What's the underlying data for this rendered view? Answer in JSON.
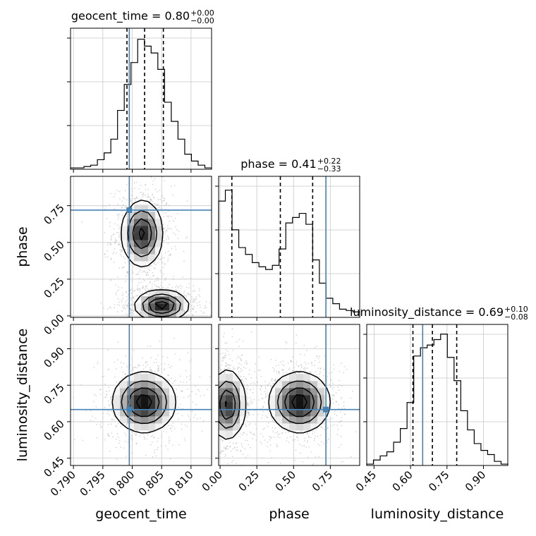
{
  "chart_data": {
    "type": "corner",
    "truth_color": "#4682b4",
    "parameters": [
      {
        "name": "geocent_time",
        "median": "0.80",
        "upper_err": "+0.00",
        "lower_err": "−0.00",
        "range": [
          0.7895,
          0.8135
        ],
        "ticks": [
          "0.790",
          "0.795",
          "0.800",
          "0.805",
          "0.810"
        ],
        "tick_values": [
          0.79,
          0.795,
          0.8,
          0.805,
          0.81
        ],
        "quantiles": [
          0.7991,
          0.8021,
          0.8053
        ],
        "truth": 0.7995,
        "title": "geocent_time = 0.80",
        "xlabel": "geocent_time"
      },
      {
        "name": "phase",
        "median": "0.41",
        "upper_err": "+0.22",
        "lower_err": "−0.33",
        "range": [
          -0.01,
          0.95
        ],
        "ticks": [
          "0.00",
          "0.25",
          "0.50",
          "0.75"
        ],
        "tick_values": [
          0.0,
          0.25,
          0.5,
          0.75
        ],
        "quantiles": [
          0.08,
          0.41,
          0.63
        ],
        "truth": 0.72,
        "title": "phase = 0.41",
        "xlabel": "phase",
        "ylabel": "phase"
      },
      {
        "name": "luminosity_distance",
        "median": "0.69",
        "upper_err": "+0.10",
        "lower_err": "−0.08",
        "range": [
          0.42,
          1.0
        ],
        "ticks": [
          "0.45",
          "0.60",
          "0.75",
          "0.90"
        ],
        "tick_values": [
          0.45,
          0.6,
          0.75,
          0.9
        ],
        "quantiles": [
          0.61,
          0.69,
          0.79
        ],
        "truth": 0.65,
        "title": "luminosity_distance = 0.69",
        "xlabel": "luminosity_distance",
        "ylabel": "luminosity_distance"
      }
    ],
    "histograms": {
      "geocent_time": [
        0.01,
        0.01,
        0.02,
        0.03,
        0.07,
        0.12,
        0.22,
        0.43,
        0.62,
        0.78,
        0.95,
        0.9,
        0.85,
        0.73,
        0.49,
        0.35,
        0.22,
        0.11,
        0.06,
        0.03,
        0.01
      ],
      "phase": [
        0.85,
        0.93,
        0.64,
        0.51,
        0.46,
        0.4,
        0.37,
        0.35,
        0.38,
        0.5,
        0.69,
        0.73,
        0.76,
        0.68,
        0.42,
        0.25,
        0.14,
        0.1,
        0.06,
        0.05,
        0.04
      ],
      "luminosity_distance": [
        0.01,
        0.04,
        0.07,
        0.1,
        0.17,
        0.27,
        0.46,
        0.8,
        0.86,
        0.88,
        0.92,
        0.96,
        0.79,
        0.62,
        0.4,
        0.26,
        0.16,
        0.11,
        0.08,
        0.03,
        0.01
      ]
    },
    "density_2d": {
      "phase_vs_geocent_time": {
        "modes": [
          {
            "x": 0.8017,
            "y": 0.56,
            "sx": 0.0017,
            "sy": 0.11,
            "w": 1.0
          },
          {
            "x": 0.805,
            "y": 0.07,
            "sx": 0.0022,
            "sy": 0.05,
            "w": 1.1
          }
        ]
      },
      "luminosity_distance_vs_geocent_time": {
        "modes": [
          {
            "x": 0.802,
            "y": 0.68,
            "sx": 0.0026,
            "sy": 0.06,
            "w": 1.0
          }
        ]
      },
      "luminosity_distance_vs_phase": {
        "modes": [
          {
            "x": 0.05,
            "y": 0.67,
            "sx": 0.06,
            "sy": 0.07,
            "w": 0.9
          },
          {
            "x": 0.54,
            "y": 0.68,
            "sx": 0.1,
            "sy": 0.06,
            "w": 1.0
          }
        ]
      }
    }
  }
}
